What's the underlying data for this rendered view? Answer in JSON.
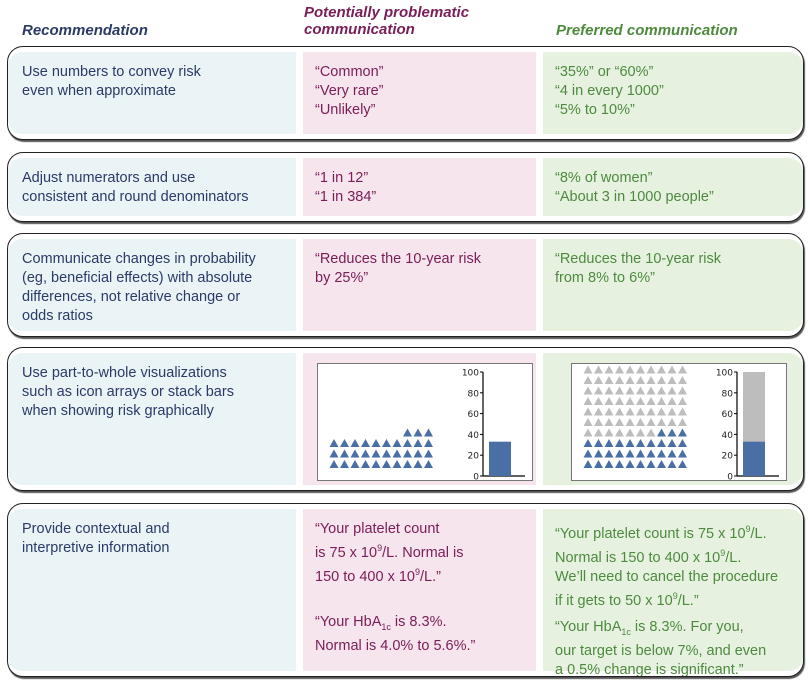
{
  "headers": {
    "recommendation": "Recommendation",
    "problematic_1": "Potentially problematic",
    "problematic_2": "communication",
    "preferred": "Preferred communication"
  },
  "rows": [
    {
      "rec": [
        "Use numbers to convey risk",
        "even when approximate"
      ],
      "bad": [
        "“Common”",
        "“Very rare”",
        "“Unlikely”"
      ],
      "good": [
        "“35%” or “60%”",
        "“4 in every 1000”",
        "“5% to 10%”"
      ]
    },
    {
      "rec": [
        "Adjust numerators and use",
        "consistent and round denominators"
      ],
      "bad": [
        "“1 in 12”",
        "“1 in 384”"
      ],
      "good": [
        "“8% of women”",
        "“About 3 in 1000 people”"
      ]
    },
    {
      "rec": [
        "Communicate changes in probability",
        "(eg, beneficial effects) with absolute",
        "differences, not relative change or",
        "odds ratios"
      ],
      "bad": [
        "“Reduces the 10-year risk",
        "by 25%”"
      ],
      "good": [
        "“Reduces the 10-year risk",
        "from 8% to 6%”"
      ]
    },
    {
      "rec": [
        "Use part-to-whole visualizations",
        "such as icon arrays or stack bars",
        "when showing risk graphically"
      ]
    },
    {
      "rec": [
        "Provide contextual and",
        "interpretive information"
      ],
      "bad_a": {
        "l1": "“Your platelet count",
        "l2a": "is 75 x 10",
        "l2s": "9",
        "l2b": "/L. Normal is",
        "l3a": "150 to 400 x 10",
        "l3s": "9",
        "l3b": "/L.”"
      },
      "bad_b": {
        "l1a": "“Your HbA",
        "l1s": "1c",
        "l1b": " is 8.3%.",
        "l2": "Normal is 4.0% to 5.6%.”"
      },
      "good_a": {
        "l1a": "“Your platelet count is 75 x 10",
        "l1s": "9",
        "l1b": "/L.",
        "l2a": "Normal is 150 to 400 x 10",
        "l2s": "9",
        "l2b": "/L.",
        "l3": "We’ll need to cancel the procedure",
        "l4a": "if it gets to 50 x 10",
        "l4s": "9",
        "l4b": "/L.”"
      },
      "good_b": {
        "l1a": "“Your HbA",
        "l1s": "1c",
        "l1b": " is 8.3%. For you,",
        "l2": "our target is below 7%, and even",
        "l3": "a 0.5% change is significant.”"
      }
    }
  ],
  "chart_data": [
    {
      "type": "icon-array+bar",
      "name": "problematic",
      "affected": 33,
      "total": 33,
      "yticks": [
        "0",
        "20",
        "40",
        "60",
        "80",
        "100"
      ],
      "bar_value": 33,
      "ylim": [
        0,
        100
      ]
    },
    {
      "type": "icon-array+stacked-bar",
      "name": "preferred",
      "affected": 33,
      "total": 100,
      "yticks": [
        "0",
        "20",
        "40",
        "60",
        "80",
        "100"
      ],
      "bar_value": 33,
      "ylim": [
        0,
        100
      ]
    }
  ],
  "colors": {
    "affected": "#4a6fa5",
    "unaffected": "#bdbdbd"
  }
}
